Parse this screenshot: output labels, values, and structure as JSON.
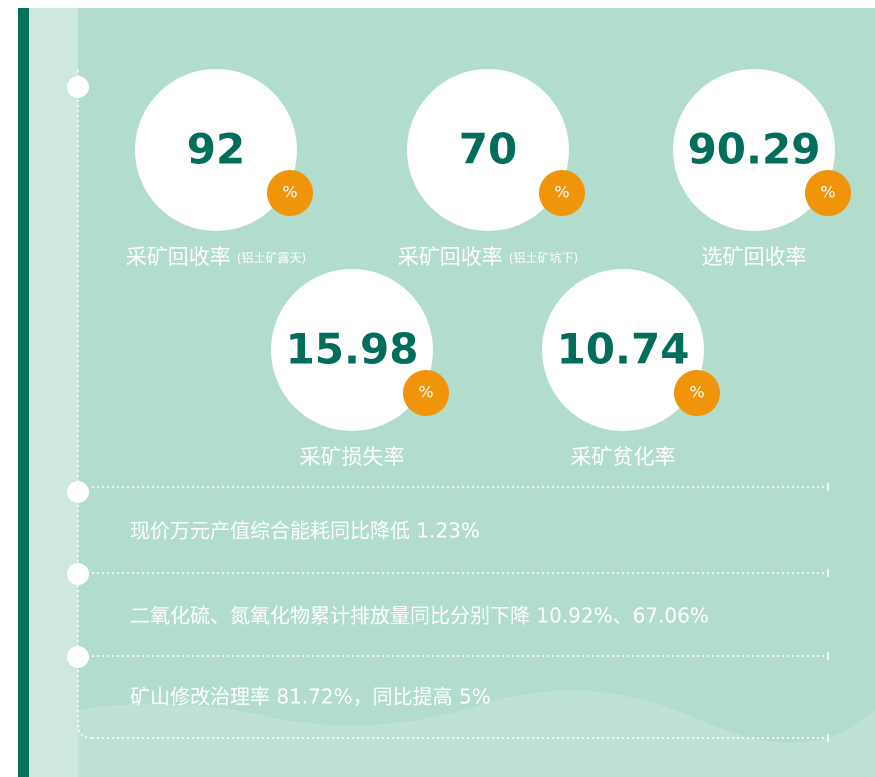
{
  "metrics": [
    {
      "value": "92",
      "unit": "%",
      "label": "采矿回收率",
      "sublabel": "(铝土矿露天)"
    },
    {
      "value": "70",
      "unit": "%",
      "label": "采矿回收率",
      "sublabel": "(铝土矿坑下)"
    },
    {
      "value": "90.29",
      "unit": "%",
      "label": "选矿回收率"
    },
    {
      "value": "15.98",
      "unit": "%",
      "label": "采矿损失率"
    },
    {
      "value": "10.74",
      "unit": "%",
      "label": "采矿贫化率"
    }
  ],
  "statements": [
    "现价万元产值综合能耗同比降低 1.23%",
    "二氧化硫、氮氧化物累计排放量同比分别下降 10.92%、67.06%",
    "矿山修改治理率 81.72%，同比提高 5%"
  ]
}
